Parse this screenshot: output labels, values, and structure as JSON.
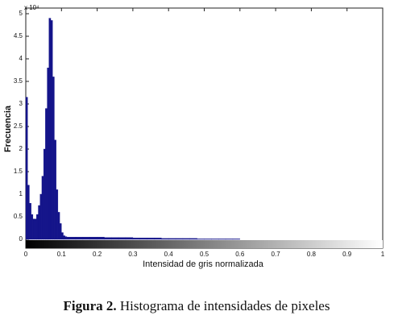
{
  "chart_data": {
    "type": "histogram",
    "ylabel": "Frecuencia",
    "xlabel": "Intensidad de gris normalizada",
    "y_exponent": "x 10⁴",
    "color": "#14148a",
    "bins": [
      0,
      0.005,
      0.01,
      0.015,
      0.02,
      0.025,
      0.03,
      0.035,
      0.04,
      0.045,
      0.05,
      0.055,
      0.06,
      0.065,
      0.07,
      0.075,
      0.08,
      0.085,
      0.09,
      0.095,
      0.1,
      0.105,
      0.11,
      0.115,
      0.12,
      0.14,
      0.16,
      0.18,
      0.2,
      0.22,
      0.24,
      0.26,
      0.28,
      0.3,
      0.32,
      0.34,
      0.36,
      0.38,
      0.4,
      0.42,
      0.44,
      0.46,
      0.48,
      0.5,
      0.52,
      0.54,
      0.56,
      0.58,
      0.6
    ],
    "values": [
      3.15,
      1.2,
      0.8,
      0.55,
      0.45,
      0.45,
      0.55,
      0.75,
      1.0,
      1.4,
      2.0,
      2.9,
      3.8,
      4.9,
      4.85,
      3.6,
      2.2,
      1.1,
      0.6,
      0.35,
      0.15,
      0.08,
      0.06,
      0.05,
      0.05,
      0.05,
      0.05,
      0.05,
      0.05,
      0.04,
      0.04,
      0.04,
      0.04,
      0.03,
      0.03,
      0.03,
      0.03,
      0.02,
      0.02,
      0.02,
      0.02,
      0.02,
      0.01,
      0.01,
      0.01,
      0.01,
      0.01,
      0.01
    ],
    "xlim": [
      0,
      1
    ],
    "xticks": [
      0,
      0.1,
      0.2,
      0.3,
      0.4,
      0.5,
      0.6,
      0.7,
      0.8,
      0.9,
      1
    ],
    "ylim": [
      0,
      5
    ],
    "yticks": [
      0,
      0.5,
      1,
      1.5,
      2,
      2.5,
      3,
      3.5,
      4,
      4.5,
      5
    ]
  },
  "caption": {
    "label": "Figura 2.",
    "text": "Histograma de intensidades de pixeles"
  }
}
